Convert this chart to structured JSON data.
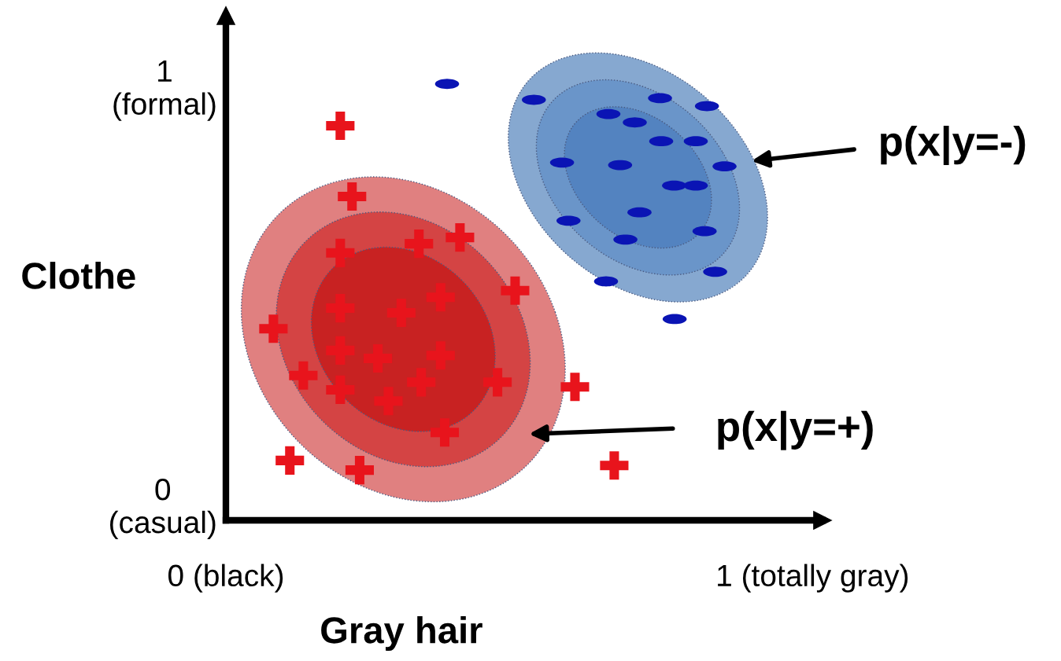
{
  "chart_data": {
    "type": "scatter",
    "xlabel": "Gray hair",
    "ylabel": "Clothe",
    "xlim": [
      0,
      1.017
    ],
    "ylim": [
      -0.041,
      1.165
    ],
    "xticks": [
      {
        "value": 0,
        "label": "0 (black)"
      },
      {
        "value": 1,
        "label": "1 (totally gray)"
      }
    ],
    "yticks": [
      {
        "value": 0,
        "label": "0\n(casual)"
      },
      {
        "value": 1,
        "label": "1\n(formal)"
      }
    ],
    "grid": false,
    "legend": false,
    "series": [
      {
        "color": "#e8141c",
        "marker": "cross",
        "x": [
          0.195,
          0.215,
          0.195,
          0.329,
          0.399,
          0.081,
          0.195,
          0.299,
          0.366,
          0.493,
          0.195,
          0.259,
          0.366,
          0.132,
          0.195,
          0.333,
          0.463,
          0.277,
          0.595,
          0.373,
          0.109,
          0.228,
          0.662
        ],
        "values": [
          0.902,
          0.733,
          0.598,
          0.62,
          0.635,
          0.417,
          0.466,
          0.455,
          0.492,
          0.508,
          0.365,
          0.346,
          0.353,
          0.305,
          0.271,
          0.289,
          0.289,
          0.244,
          0.278,
          0.169,
          0.102,
          0.079,
          0.09
        ]
      },
      {
        "color": "#0a14b4",
        "x": [
          0.377,
          0.525,
          0.652,
          0.74,
          0.82,
          0.697,
          0.742,
          0.801,
          0.573,
          0.672,
          0.85,
          0.764,
          0.801,
          0.584,
          0.705,
          0.816,
          0.681,
          0.834,
          0.648,
          0.765
        ],
        "values": [
          1.002,
          0.964,
          0.93,
          0.968,
          0.949,
          0.91,
          0.865,
          0.865,
          0.814,
          0.808,
          0.805,
          0.759,
          0.759,
          0.675,
          0.695,
          0.65,
          0.63,
          0.553,
          0.53,
          0.44
        ]
      }
    ],
    "annotations": [
      "p(x|y=-)",
      "p(x|y=+)"
    ]
  }
}
